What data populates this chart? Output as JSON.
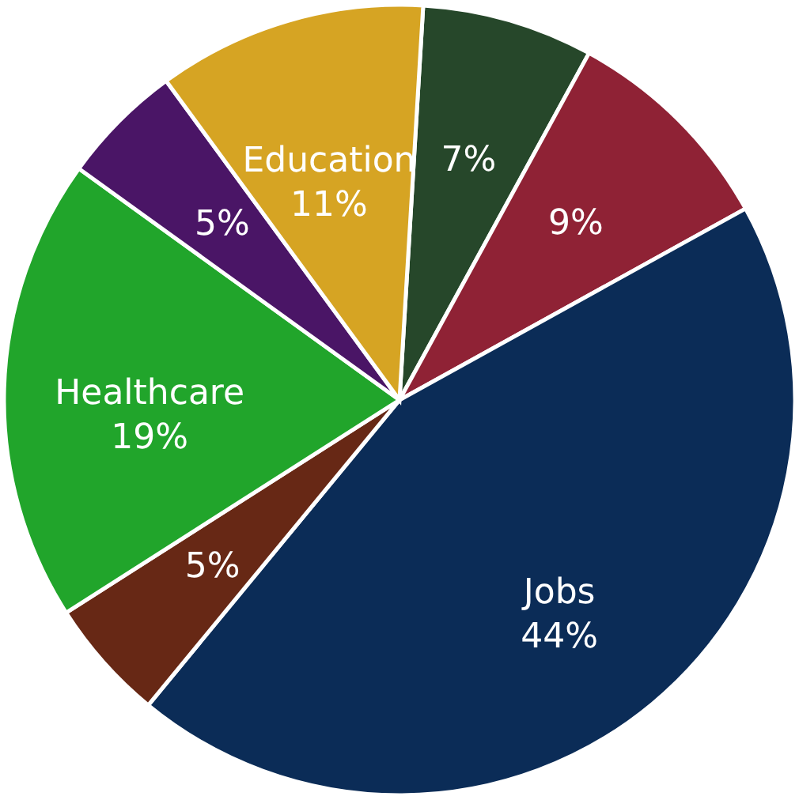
{
  "chart_data": {
    "type": "pie",
    "categories": [
      null,
      null,
      "Jobs",
      null,
      "Healthcare",
      null,
      "Education"
    ],
    "values": [
      7,
      9,
      44,
      5,
      19,
      5,
      11
    ],
    "value_labels": [
      "7%",
      "9%",
      "44%",
      "5%",
      "19%",
      "5%",
      "11%"
    ],
    "colors": [
      "#26472a",
      "#8f2235",
      "#0b2c57",
      "#672815",
      "#21a52b",
      "#4a1566",
      "#d6a423"
    ]
  }
}
